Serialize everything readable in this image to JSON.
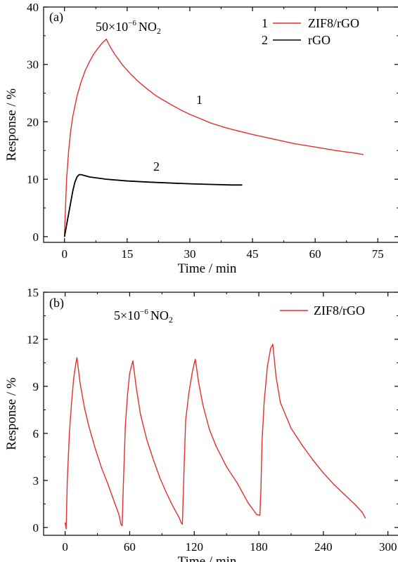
{
  "chart_data": [
    {
      "type": "line",
      "panel": "(a)",
      "annotation": {
        "prefix": "50×10",
        "exponent": "−6",
        "species": "NO",
        "subscript": "2"
      },
      "xlabel": "Time / min",
      "ylabel": "Response / %",
      "xlim": [
        -5,
        80
      ],
      "ylim": [
        -1,
        40
      ],
      "xticks": [
        0,
        15,
        30,
        45,
        60,
        75
      ],
      "yticks": [
        0,
        10,
        20,
        30,
        40
      ],
      "legend_position": "top-right",
      "legend": [
        {
          "number": "1",
          "label": "ZIF8/rGO",
          "color": "#e03030"
        },
        {
          "number": "2",
          "label": "rGO",
          "color": "#000000"
        }
      ],
      "series": [
        {
          "name": "ZIF8/rGO",
          "curve_label": "1",
          "color": "#e03030",
          "x": [
            0,
            0.5,
            1,
            1.5,
            2,
            3,
            4,
            5,
            6,
            7,
            8,
            9,
            10,
            11,
            12,
            14,
            16,
            18,
            20,
            22,
            25,
            28,
            30,
            33,
            35,
            38,
            40,
            45,
            50,
            55,
            60,
            65,
            70,
            71.5
          ],
          "y": [
            0.5,
            10,
            15,
            18.5,
            21,
            24.5,
            27,
            29,
            30.5,
            31.8,
            32.8,
            33.7,
            34.4,
            33.0,
            31.8,
            29.8,
            28.2,
            26.8,
            25.6,
            24.5,
            23.2,
            22.0,
            21.3,
            20.4,
            19.8,
            19.1,
            18.7,
            17.8,
            17.0,
            16.2,
            15.6,
            15.0,
            14.5,
            14.3
          ]
        },
        {
          "name": "rGO",
          "curve_label": "2",
          "color": "#000000",
          "x": [
            0,
            0.5,
            1,
            1.5,
            2,
            2.5,
            3,
            3.5,
            4,
            5,
            6,
            8,
            10,
            15,
            20,
            25,
            30,
            35,
            40,
            42.5
          ],
          "y": [
            0,
            2,
            4,
            6,
            8,
            9.5,
            10.4,
            10.8,
            10.8,
            10.6,
            10.4,
            10.2,
            10.0,
            9.7,
            9.5,
            9.35,
            9.2,
            9.1,
            9.0,
            9.0
          ]
        }
      ]
    },
    {
      "type": "line",
      "panel": "(b)",
      "annotation": {
        "prefix": "5×10",
        "exponent": "−6",
        "species": "NO",
        "subscript": "2"
      },
      "xlabel": "Time / min",
      "ylabel": "Response / %",
      "xlim": [
        -20,
        310
      ],
      "ylim": [
        -0.5,
        15
      ],
      "xticks": [
        0,
        60,
        120,
        180,
        240,
        300
      ],
      "yticks": [
        0,
        3,
        6,
        9,
        12,
        15
      ],
      "legend_position": "top-right",
      "legend": [
        {
          "label": "ZIF8/rGO",
          "color": "#e03030"
        }
      ],
      "series": [
        {
          "name": "ZIF8/rGO",
          "color": "#e03030",
          "x": [
            0,
            1,
            2,
            4,
            6,
            8,
            10,
            11,
            14,
            18,
            22,
            28,
            34,
            40,
            46,
            50,
            52,
            53,
            54,
            56,
            58,
            60,
            62,
            63,
            66,
            70,
            76,
            82,
            88,
            94,
            100,
            106,
            108,
            109,
            110,
            112,
            115,
            118,
            120,
            121,
            124,
            128,
            134,
            140,
            150,
            160,
            170,
            178,
            181,
            182,
            183,
            185,
            188,
            191,
            193,
            196,
            200,
            210,
            220,
            230,
            240,
            250,
            260,
            270,
            276,
            279
          ],
          "y": [
            0.3,
            -0.1,
            3,
            6,
            8,
            9.5,
            10.5,
            10.8,
            9.2,
            7.6,
            6.5,
            5.0,
            3.8,
            2.7,
            1.6,
            0.8,
            0.2,
            0.1,
            2.5,
            6.5,
            8.5,
            9.8,
            10.4,
            10.6,
            9.0,
            7.2,
            5.6,
            4.3,
            3.2,
            2.2,
            1.4,
            0.6,
            0.3,
            0.2,
            2.6,
            6.8,
            8.6,
            9.8,
            10.5,
            10.7,
            9.3,
            7.8,
            6.3,
            5.2,
            3.9,
            2.8,
            1.6,
            0.8,
            0.8,
            2.5,
            5.5,
            8.0,
            10.3,
            11.4,
            11.7,
            9.6,
            8.0,
            6.3,
            5.3,
            4.3,
            3.5,
            2.7,
            2.1,
            1.4,
            1.0,
            0.6
          ]
        }
      ]
    }
  ]
}
